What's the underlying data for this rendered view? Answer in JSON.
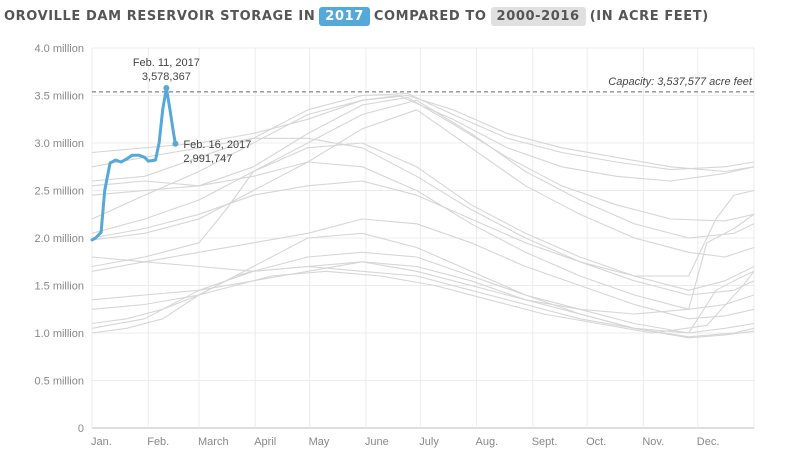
{
  "title": {
    "prefix": "OROVILLE DAM RESERVOIR STORAGE IN",
    "highlight_year": "2017",
    "middle": "COMPARED TO",
    "highlight_range": "2000-2016",
    "suffix": "(IN ACRE FEET)"
  },
  "colors": {
    "current": "#56a8d8",
    "historical": "#d6d6d6",
    "grid": "#ececec",
    "axis": "#bbbbbb"
  },
  "chart_data": {
    "type": "line",
    "title": "OROVILLE DAM RESERVOIR STORAGE IN 2017 COMPARED TO 2000-2016 (IN ACRE FEET)",
    "ylabel": "",
    "xlabel": "",
    "ylim": [
      0,
      4000000
    ],
    "xlim": [
      1,
      366
    ],
    "y_ticks": [
      {
        "value": 0,
        "label": "0"
      },
      {
        "value": 500000,
        "label": "0.5 million"
      },
      {
        "value": 1000000,
        "label": "1.0 million"
      },
      {
        "value": 1500000,
        "label": "1.5 million"
      },
      {
        "value": 2000000,
        "label": "2.0 million"
      },
      {
        "value": 2500000,
        "label": "2.5 million"
      },
      {
        "value": 3000000,
        "label": "3.0 million"
      },
      {
        "value": 3500000,
        "label": "3.5 million"
      },
      {
        "value": 4000000,
        "label": "4.0 million"
      }
    ],
    "x_ticks": [
      {
        "day": 1,
        "label": "Jan."
      },
      {
        "day": 32,
        "label": "Feb."
      },
      {
        "day": 60,
        "label": "March"
      },
      {
        "day": 91,
        "label": "April"
      },
      {
        "day": 121,
        "label": "May"
      },
      {
        "day": 152,
        "label": "June"
      },
      {
        "day": 182,
        "label": "July"
      },
      {
        "day": 213,
        "label": "Aug."
      },
      {
        "day": 244,
        "label": "Sept."
      },
      {
        "day": 274,
        "label": "Oct."
      },
      {
        "day": 305,
        "label": "Nov."
      },
      {
        "day": 335,
        "label": "Dec."
      }
    ],
    "grid": true,
    "capacity": {
      "value": 3537577,
      "label": "Capacity: 3,537,577 acre feet"
    },
    "current_series": {
      "name": "2017",
      "points": [
        [
          1,
          1980000
        ],
        [
          3,
          2000000
        ],
        [
          6,
          2060000
        ],
        [
          8,
          2500000
        ],
        [
          11,
          2790000
        ],
        [
          14,
          2820000
        ],
        [
          17,
          2800000
        ],
        [
          20,
          2830000
        ],
        [
          23,
          2870000
        ],
        [
          27,
          2870000
        ],
        [
          30,
          2850000
        ],
        [
          32,
          2810000
        ],
        [
          36,
          2820000
        ],
        [
          38,
          3000000
        ],
        [
          40,
          3350000
        ],
        [
          42,
          3578367
        ],
        [
          44,
          3350000
        ],
        [
          46,
          3100000
        ],
        [
          47,
          2991747
        ]
      ]
    },
    "annotations": [
      {
        "date": "Feb. 11, 2017",
        "value": "3,578,367"
      },
      {
        "date": "Feb. 16, 2017",
        "value": "2,991,747"
      }
    ],
    "historical_series": [
      {
        "points": [
          [
            1,
            2600000
          ],
          [
            30,
            2650000
          ],
          [
            60,
            2850000
          ],
          [
            90,
            3050000
          ],
          [
            120,
            3350000
          ],
          [
            150,
            3500000
          ],
          [
            175,
            3520000
          ],
          [
            200,
            3300000
          ],
          [
            230,
            3050000
          ],
          [
            260,
            2900000
          ],
          [
            290,
            2800000
          ],
          [
            320,
            2720000
          ],
          [
            350,
            2750000
          ],
          [
            366,
            2800000
          ]
        ]
      },
      {
        "points": [
          [
            1,
            2200000
          ],
          [
            30,
            2450000
          ],
          [
            60,
            2700000
          ],
          [
            90,
            3000000
          ],
          [
            120,
            3300000
          ],
          [
            150,
            3450000
          ],
          [
            175,
            3500000
          ],
          [
            200,
            3350000
          ],
          [
            230,
            3100000
          ],
          [
            260,
            2950000
          ],
          [
            290,
            2850000
          ],
          [
            320,
            2750000
          ],
          [
            350,
            2700000
          ],
          [
            366,
            2750000
          ]
        ]
      },
      {
        "points": [
          [
            1,
            2900000
          ],
          [
            30,
            2950000
          ],
          [
            60,
            3000000
          ],
          [
            90,
            3100000
          ],
          [
            120,
            3250000
          ],
          [
            150,
            3450000
          ],
          [
            170,
            3500000
          ],
          [
            200,
            3250000
          ],
          [
            230,
            2950000
          ],
          [
            260,
            2750000
          ],
          [
            290,
            2650000
          ],
          [
            320,
            2600000
          ],
          [
            350,
            2680000
          ],
          [
            366,
            2750000
          ]
        ]
      },
      {
        "points": [
          [
            1,
            2450000
          ],
          [
            30,
            2500000
          ],
          [
            60,
            2550000
          ],
          [
            90,
            2750000
          ],
          [
            120,
            3100000
          ],
          [
            150,
            3400000
          ],
          [
            175,
            3480000
          ],
          [
            200,
            3200000
          ],
          [
            230,
            2850000
          ],
          [
            260,
            2550000
          ],
          [
            290,
            2350000
          ],
          [
            320,
            2200000
          ],
          [
            350,
            2180000
          ],
          [
            366,
            2250000
          ]
        ]
      },
      {
        "points": [
          [
            1,
            2050000
          ],
          [
            30,
            2200000
          ],
          [
            60,
            2400000
          ],
          [
            90,
            2700000
          ],
          [
            120,
            3000000
          ],
          [
            150,
            3300000
          ],
          [
            180,
            3450000
          ],
          [
            210,
            3100000
          ],
          [
            240,
            2700000
          ],
          [
            270,
            2400000
          ],
          [
            300,
            2150000
          ],
          [
            330,
            2000000
          ],
          [
            355,
            2050000
          ],
          [
            366,
            2150000
          ]
        ]
      },
      {
        "points": [
          [
            1,
            1980000
          ],
          [
            30,
            2050000
          ],
          [
            60,
            2200000
          ],
          [
            90,
            2500000
          ],
          [
            120,
            2800000
          ],
          [
            150,
            3150000
          ],
          [
            180,
            3350000
          ],
          [
            210,
            2950000
          ],
          [
            240,
            2550000
          ],
          [
            270,
            2250000
          ],
          [
            300,
            2000000
          ],
          [
            330,
            1850000
          ],
          [
            350,
            1800000
          ],
          [
            366,
            1900000
          ]
        ]
      },
      {
        "points": [
          [
            1,
            1700000
          ],
          [
            30,
            1800000
          ],
          [
            60,
            1950000
          ],
          [
            75,
            2300000
          ],
          [
            90,
            2700000
          ],
          [
            120,
            2950000
          ],
          [
            150,
            3000000
          ],
          [
            180,
            2750000
          ],
          [
            210,
            2350000
          ],
          [
            240,
            2050000
          ],
          [
            270,
            1800000
          ],
          [
            300,
            1600000
          ],
          [
            330,
            1450000
          ],
          [
            350,
            1550000
          ],
          [
            366,
            1700000
          ]
        ]
      },
      {
        "points": [
          [
            1,
            2750000
          ],
          [
            30,
            2850000
          ],
          [
            60,
            2950000
          ],
          [
            90,
            3050000
          ],
          [
            120,
            3050000
          ],
          [
            150,
            2950000
          ],
          [
            180,
            2650000
          ],
          [
            210,
            2300000
          ],
          [
            240,
            2000000
          ],
          [
            270,
            1750000
          ],
          [
            300,
            1550000
          ],
          [
            330,
            1400000
          ],
          [
            355,
            1450000
          ],
          [
            366,
            1550000
          ]
        ]
      },
      {
        "points": [
          [
            1,
            2550000
          ],
          [
            30,
            2600000
          ],
          [
            60,
            2550000
          ],
          [
            90,
            2650000
          ],
          [
            120,
            2800000
          ],
          [
            150,
            2750000
          ],
          [
            180,
            2500000
          ],
          [
            210,
            2150000
          ],
          [
            240,
            1850000
          ],
          [
            270,
            1600000
          ],
          [
            300,
            1400000
          ],
          [
            330,
            1250000
          ],
          [
            350,
            1300000
          ],
          [
            366,
            1400000
          ]
        ]
      },
      {
        "points": [
          [
            1,
            1650000
          ],
          [
            30,
            1750000
          ],
          [
            60,
            1850000
          ],
          [
            90,
            1950000
          ],
          [
            120,
            2050000
          ],
          [
            150,
            2200000
          ],
          [
            180,
            2150000
          ],
          [
            210,
            1950000
          ],
          [
            240,
            1700000
          ],
          [
            270,
            1500000
          ],
          [
            300,
            1300000
          ],
          [
            330,
            1150000
          ],
          [
            350,
            1180000
          ],
          [
            366,
            1250000
          ]
        ]
      },
      {
        "points": [
          [
            1,
            1350000
          ],
          [
            30,
            1400000
          ],
          [
            60,
            1450000
          ],
          [
            90,
            1550000
          ],
          [
            120,
            1650000
          ],
          [
            150,
            1750000
          ],
          [
            180,
            1700000
          ],
          [
            210,
            1550000
          ],
          [
            240,
            1350000
          ],
          [
            270,
            1200000
          ],
          [
            300,
            1050000
          ],
          [
            330,
            960000
          ],
          [
            355,
            1000000
          ],
          [
            366,
            1050000
          ]
        ]
      },
      {
        "points": [
          [
            1,
            1250000
          ],
          [
            30,
            1300000
          ],
          [
            60,
            1400000
          ],
          [
            90,
            1700000
          ],
          [
            120,
            2000000
          ],
          [
            150,
            2050000
          ],
          [
            180,
            1900000
          ],
          [
            210,
            1650000
          ],
          [
            240,
            1400000
          ],
          [
            270,
            1200000
          ],
          [
            300,
            1050000
          ],
          [
            330,
            950000
          ],
          [
            350,
            980000
          ],
          [
            366,
            1020000
          ]
        ]
      },
      {
        "points": [
          [
            1,
            1000000
          ],
          [
            20,
            1050000
          ],
          [
            40,
            1150000
          ],
          [
            60,
            1400000
          ],
          [
            80,
            1600000
          ],
          [
            100,
            1700000
          ],
          [
            120,
            1800000
          ],
          [
            150,
            1850000
          ],
          [
            180,
            1800000
          ],
          [
            210,
            1600000
          ],
          [
            240,
            1400000
          ],
          [
            270,
            1250000
          ],
          [
            300,
            1100000
          ],
          [
            330,
            1000000
          ],
          [
            350,
            1050000
          ],
          [
            366,
            1100000
          ]
        ]
      },
      {
        "points": [
          [
            1,
            1050000
          ],
          [
            30,
            1150000
          ],
          [
            60,
            1450000
          ],
          [
            90,
            1650000
          ],
          [
            120,
            1700000
          ],
          [
            150,
            1650000
          ],
          [
            180,
            1600000
          ],
          [
            210,
            1450000
          ],
          [
            240,
            1300000
          ],
          [
            270,
            1150000
          ],
          [
            300,
            1050000
          ],
          [
            330,
            1000000
          ],
          [
            345,
            1450000
          ],
          [
            355,
            1550000
          ],
          [
            366,
            1650000
          ]
        ]
      },
      {
        "points": [
          [
            1,
            1800000
          ],
          [
            30,
            1750000
          ],
          [
            60,
            1700000
          ],
          [
            90,
            1650000
          ],
          [
            120,
            1700000
          ],
          [
            150,
            1750000
          ],
          [
            180,
            1650000
          ],
          [
            210,
            1500000
          ],
          [
            240,
            1350000
          ],
          [
            270,
            1250000
          ],
          [
            300,
            1200000
          ],
          [
            330,
            1250000
          ],
          [
            340,
            1950000
          ],
          [
            355,
            2100000
          ],
          [
            366,
            2250000
          ]
        ]
      },
      {
        "points": [
          [
            1,
            1100000
          ],
          [
            20,
            1150000
          ],
          [
            40,
            1250000
          ],
          [
            60,
            1400000
          ],
          [
            80,
            1500000
          ],
          [
            100,
            1600000
          ],
          [
            130,
            1650000
          ],
          [
            160,
            1600000
          ],
          [
            190,
            1500000
          ],
          [
            220,
            1350000
          ],
          [
            250,
            1200000
          ],
          [
            280,
            1100000
          ],
          [
            310,
            1000000
          ],
          [
            340,
            1080000
          ],
          [
            360,
            1500000
          ],
          [
            366,
            1650000
          ]
        ]
      },
      {
        "points": [
          [
            1,
            2000000
          ],
          [
            30,
            2100000
          ],
          [
            60,
            2250000
          ],
          [
            90,
            2450000
          ],
          [
            120,
            2550000
          ],
          [
            150,
            2600000
          ],
          [
            180,
            2450000
          ],
          [
            210,
            2200000
          ],
          [
            240,
            1950000
          ],
          [
            270,
            1750000
          ],
          [
            300,
            1600000
          ],
          [
            330,
            1600000
          ],
          [
            345,
            2200000
          ],
          [
            355,
            2450000
          ],
          [
            366,
            2500000
          ]
        ]
      }
    ]
  }
}
